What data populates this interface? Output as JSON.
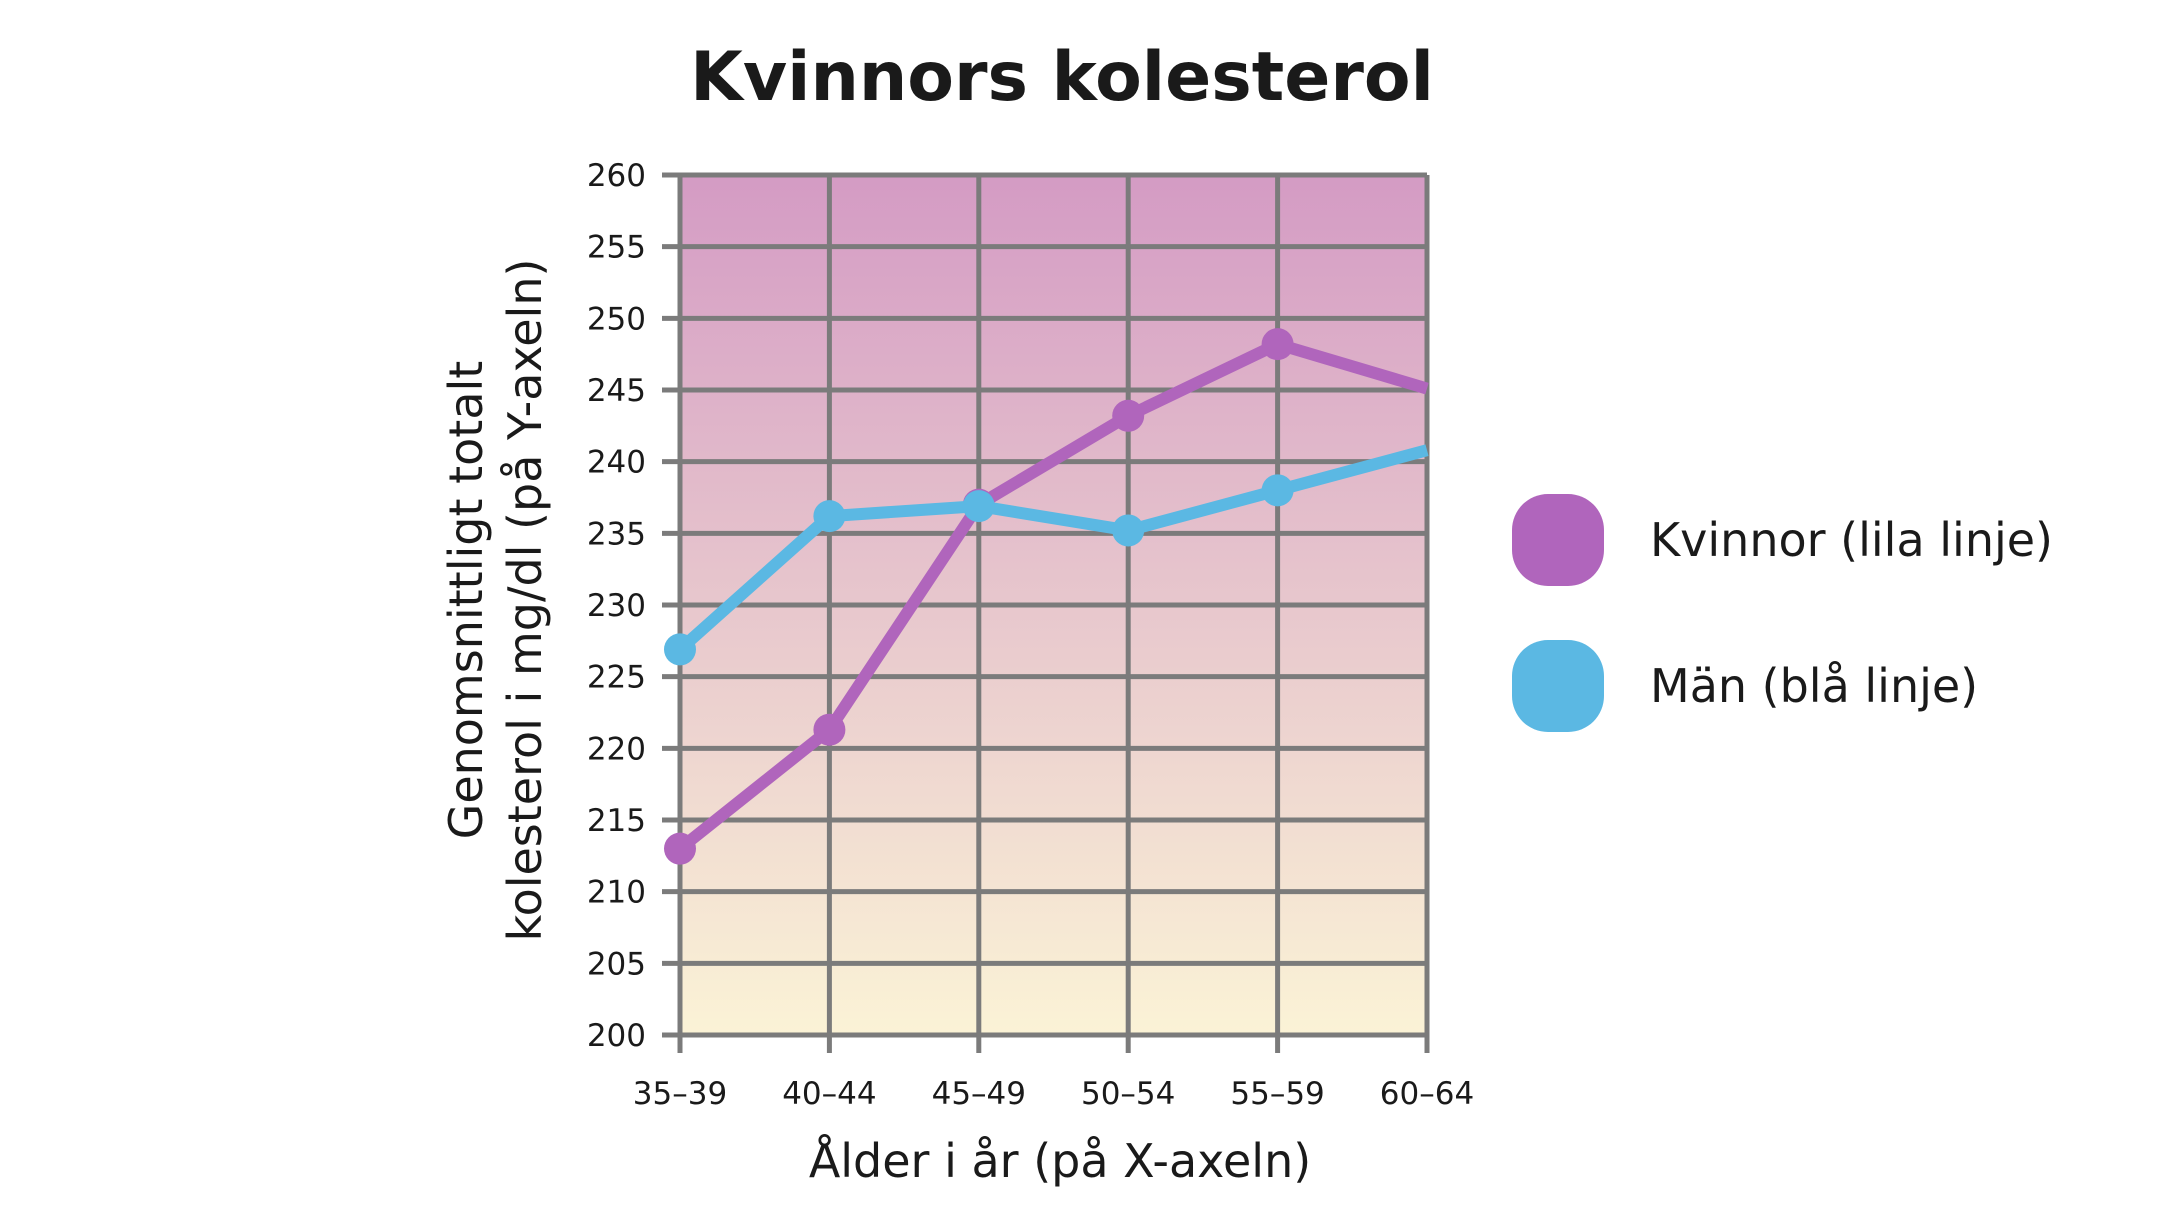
{
  "chart_data": {
    "type": "line",
    "title": "Kvinnors kolesterol",
    "xlabel": "Ålder i år (på X-axeln)",
    "ylabel_lines": [
      "Genomsnittligt totalt",
      "kolesterol i mg/dl (på Y-axeln)"
    ],
    "categories": [
      "35–39",
      "40–44",
      "45–49",
      "50–54",
      "55–59",
      "60–64"
    ],
    "yticks": [
      200,
      205,
      210,
      215,
      220,
      225,
      230,
      235,
      240,
      245,
      250,
      255,
      260
    ],
    "ylim": [
      200,
      260
    ],
    "grid": true,
    "legend_position": "right",
    "series": [
      {
        "name": "Kvinnor (lila linje)",
        "color": "#b065bc",
        "values": [
          213,
          221.3,
          237,
          243.2,
          248.2,
          245.1
        ]
      },
      {
        "name": "Män (blå linje)",
        "color": "#5bb8e3",
        "values": [
          226.9,
          236.2,
          236.9,
          235.2,
          238,
          240.8
        ]
      }
    ],
    "background_gradient": [
      "#d49bc4",
      "#fbf3d6"
    ],
    "grid_color": "#7b7b7b"
  }
}
